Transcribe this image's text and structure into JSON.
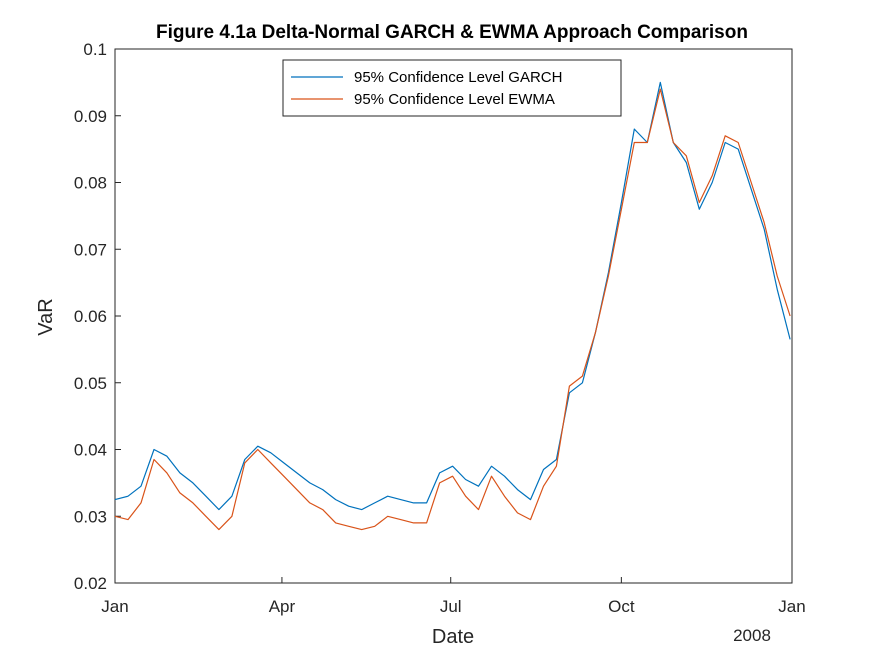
{
  "chart_data": {
    "type": "line",
    "title": "Figure 4.1a Delta-Normal GARCH & EWMA Approach Comparison",
    "xlabel": "Date",
    "ylabel": "VaR",
    "x_tick_labels": [
      "Jan",
      "Apr",
      "Jul",
      "Oct",
      "Jan"
    ],
    "x_tick_dates": [
      "2007-01-01",
      "2007-04-01",
      "2007-07-01",
      "2007-10-01",
      "2008-01-01"
    ],
    "x_secondary_label": "2008",
    "xlim": [
      "2007-01-01",
      "2008-01-01"
    ],
    "y_ticks": [
      0.02,
      0.03,
      0.04,
      0.05,
      0.06,
      0.07,
      0.08,
      0.09,
      0.1
    ],
    "y_tick_labels": [
      "0.02",
      "0.03",
      "0.04",
      "0.05",
      "0.06",
      "0.07",
      "0.08",
      "0.09",
      "0.1"
    ],
    "ylim": [
      0.02,
      0.1
    ],
    "grid": false,
    "legend_position": "top-center",
    "series": [
      {
        "name": "95% Confidence Level GARCH",
        "color": "#0072BD",
        "x": [
          "2007-01-01",
          "2007-01-08",
          "2007-01-15",
          "2007-01-22",
          "2007-01-29",
          "2007-02-05",
          "2007-02-12",
          "2007-02-19",
          "2007-02-26",
          "2007-03-05",
          "2007-03-12",
          "2007-03-19",
          "2007-03-26",
          "2007-04-02",
          "2007-04-09",
          "2007-04-16",
          "2007-04-23",
          "2007-04-30",
          "2007-05-07",
          "2007-05-14",
          "2007-05-21",
          "2007-05-28",
          "2007-06-04",
          "2007-06-11",
          "2007-06-18",
          "2007-06-25",
          "2007-07-02",
          "2007-07-09",
          "2007-07-16",
          "2007-07-23",
          "2007-07-30",
          "2007-08-06",
          "2007-08-13",
          "2007-08-20",
          "2007-08-27",
          "2007-09-03",
          "2007-09-10",
          "2007-09-17",
          "2007-09-24",
          "2007-10-01",
          "2007-10-08",
          "2007-10-15",
          "2007-10-22",
          "2007-10-29",
          "2007-11-05",
          "2007-11-12",
          "2007-11-19",
          "2007-11-26",
          "2007-12-03",
          "2007-12-10",
          "2007-12-17",
          "2007-12-24",
          "2007-12-31"
        ],
        "values": [
          0.0325,
          0.033,
          0.0345,
          0.04,
          0.039,
          0.0365,
          0.035,
          0.033,
          0.031,
          0.033,
          0.0385,
          0.0405,
          0.0395,
          0.038,
          0.0365,
          0.035,
          0.034,
          0.0325,
          0.0315,
          0.031,
          0.032,
          0.033,
          0.0325,
          0.032,
          0.032,
          0.0365,
          0.0375,
          0.0355,
          0.0345,
          0.0375,
          0.036,
          0.034,
          0.0325,
          0.037,
          0.0385,
          0.0485,
          0.05,
          0.0575,
          0.0665,
          0.077,
          0.088,
          0.086,
          0.095,
          0.086,
          0.083,
          0.076,
          0.08,
          0.086,
          0.085,
          0.079,
          0.073,
          0.064,
          0.0565
        ]
      },
      {
        "name": "95% Confidence Level EWMA",
        "color": "#D95319",
        "x": [
          "2007-01-01",
          "2007-01-08",
          "2007-01-15",
          "2007-01-22",
          "2007-01-29",
          "2007-02-05",
          "2007-02-12",
          "2007-02-19",
          "2007-02-26",
          "2007-03-05",
          "2007-03-12",
          "2007-03-19",
          "2007-03-26",
          "2007-04-02",
          "2007-04-09",
          "2007-04-16",
          "2007-04-23",
          "2007-04-30",
          "2007-05-07",
          "2007-05-14",
          "2007-05-21",
          "2007-05-28",
          "2007-06-04",
          "2007-06-11",
          "2007-06-18",
          "2007-06-25",
          "2007-07-02",
          "2007-07-09",
          "2007-07-16",
          "2007-07-23",
          "2007-07-30",
          "2007-08-06",
          "2007-08-13",
          "2007-08-20",
          "2007-08-27",
          "2007-09-03",
          "2007-09-10",
          "2007-09-17",
          "2007-09-24",
          "2007-10-01",
          "2007-10-08",
          "2007-10-15",
          "2007-10-22",
          "2007-10-29",
          "2007-11-05",
          "2007-11-12",
          "2007-11-19",
          "2007-11-26",
          "2007-12-03",
          "2007-12-10",
          "2007-12-17",
          "2007-12-24",
          "2007-12-31"
        ],
        "values": [
          0.03,
          0.0295,
          0.032,
          0.0385,
          0.0365,
          0.0335,
          0.032,
          0.03,
          0.028,
          0.03,
          0.038,
          0.04,
          0.038,
          0.036,
          0.034,
          0.032,
          0.031,
          0.029,
          0.0285,
          0.028,
          0.0285,
          0.03,
          0.0295,
          0.029,
          0.029,
          0.035,
          0.036,
          0.033,
          0.031,
          0.036,
          0.033,
          0.0305,
          0.0295,
          0.0345,
          0.0375,
          0.0495,
          0.051,
          0.0575,
          0.066,
          0.076,
          0.086,
          0.086,
          0.094,
          0.086,
          0.084,
          0.077,
          0.081,
          0.087,
          0.086,
          0.08,
          0.074,
          0.066,
          0.06
        ]
      }
    ]
  }
}
